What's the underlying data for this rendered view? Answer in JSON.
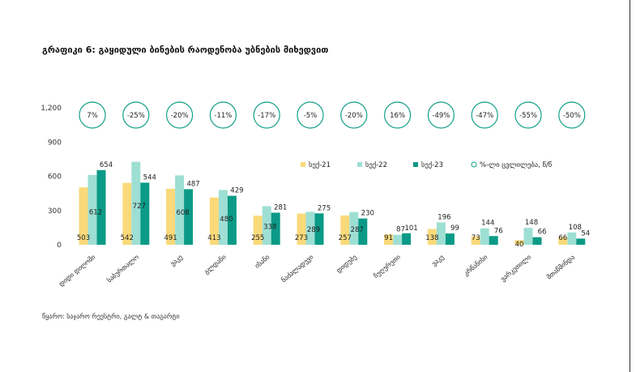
{
  "title": "გრაფიკი 6: გაყიდული ბინების რაოდენობა უბნების მიხედვით",
  "source": "წყარო: საჯარო რეესტრი, გალტ & თაგარტი",
  "colors": {
    "y21": "#fad97a",
    "y22": "#9edfd4",
    "y23": "#0b9a87",
    "bubble_stroke": "#14a08a"
  },
  "chart_data": {
    "type": "bar",
    "title": "გრაფიკი 6: გაყიდული ბინების რაოდენობა უბნების მიხედვით",
    "categories": [
      "დიდი დიღომი",
      "საბურთალო",
      "ვაკე",
      "გლდანი",
      "ისანი",
      "ნაძალადევი",
      "დიდუბე",
      "ჩუღურეთი",
      "ვაკე",
      "კრწანისი",
      "ვარკეთილი",
      "მთაწმინდა"
    ],
    "series": [
      {
        "name": "სექ-21",
        "values": [
          503,
          542,
          491,
          413,
          255,
          273,
          257,
          91,
          138,
          73,
          40,
          66
        ]
      },
      {
        "name": "სექ-22",
        "values": [
          612,
          727,
          608,
          480,
          338,
          289,
          287,
          87,
          196,
          144,
          148,
          108
        ]
      },
      {
        "name": "სექ-23",
        "values": [
          654,
          544,
          487,
          429,
          281,
          275,
          230,
          101,
          99,
          76,
          66,
          54
        ]
      }
    ],
    "change": {
      "name": "%-ლი ცვლილება, წ/წ",
      "values": [
        "7%",
        "-25%",
        "-20%",
        "-11%",
        "-17%",
        "-5%",
        "-20%",
        "16%",
        "-49%",
        "-47%",
        "-55%",
        "-50%"
      ]
    },
    "yticks": [
      "0",
      "300",
      "600",
      "900",
      "1,200"
    ],
    "ylim": [
      0,
      1200
    ],
    "grid": false,
    "legend": "right"
  }
}
